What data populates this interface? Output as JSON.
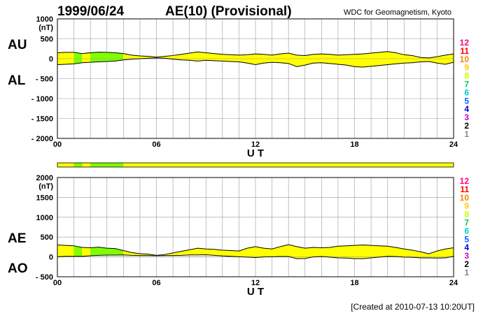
{
  "header": {
    "date": "1999/06/24",
    "title": "AE(10) (Provisional)",
    "source": "WDC for Geomagnetism, Kyoto"
  },
  "footer": {
    "created": "[Created at 2010-07-13 10:20UT]"
  },
  "colors": {
    "fill_default": "#ffff00",
    "fill_green": "#80ff00",
    "line": "#000000",
    "grid": "#999999"
  },
  "legend_levels": [
    {
      "label": "12",
      "color": "#ff0080"
    },
    {
      "label": "11",
      "color": "#ff0000"
    },
    {
      "label": "10",
      "color": "#ff8000"
    },
    {
      "label": "9",
      "color": "#ffcc00"
    },
    {
      "label": "8",
      "color": "#ccff00"
    },
    {
      "label": "7",
      "color": "#00cc66"
    },
    {
      "label": "6",
      "color": "#00cccc"
    },
    {
      "label": "5",
      "color": "#0066ff"
    },
    {
      "label": "4",
      "color": "#0000cc"
    },
    {
      "label": "3",
      "color": "#cc00cc"
    },
    {
      "label": "2",
      "color": "#000000"
    },
    {
      "label": "1",
      "color": "#888888"
    }
  ],
  "chart_data": [
    {
      "type": "area",
      "panel": "AU/AL",
      "upper_label": "AU",
      "lower_label": "AL",
      "unit": "(nT)",
      "xlabel": "U T",
      "xlim": [
        0,
        24
      ],
      "ylim": [
        -2000,
        1000
      ],
      "yticks": [
        {
          "v": 1000,
          "label": "1000"
        },
        {
          "v": 500,
          "label": "500"
        },
        {
          "v": 0,
          "label": "0"
        },
        {
          "v": -500,
          "label": "- 500"
        },
        {
          "v": -1000,
          "label": "- 1000"
        },
        {
          "v": -1500,
          "label": "- 1500"
        },
        {
          "v": -2000,
          "label": "- 2000"
        }
      ],
      "xticks": [
        {
          "v": 0,
          "label": "00"
        },
        {
          "v": 6,
          "label": "06"
        },
        {
          "v": 12,
          "label": "12"
        },
        {
          "v": 18,
          "label": "18"
        },
        {
          "v": 24,
          "label": "24"
        }
      ],
      "x": [
        0,
        0.5,
        1,
        1.5,
        2,
        2.5,
        3,
        3.5,
        4,
        4.5,
        5,
        5.5,
        6,
        6.5,
        7,
        7.5,
        8,
        8.5,
        9,
        9.5,
        10,
        10.5,
        11,
        11.5,
        12,
        12.5,
        13,
        13.5,
        14,
        14.5,
        15,
        15.5,
        16,
        16.5,
        17,
        17.5,
        18,
        18.5,
        19,
        19.5,
        20,
        20.5,
        21,
        21.5,
        22,
        22.5,
        23,
        23.5,
        24
      ],
      "series": [
        {
          "role": "upper",
          "values": [
            150,
            160,
            160,
            130,
            150,
            165,
            160,
            150,
            130,
            90,
            70,
            60,
            40,
            60,
            80,
            110,
            140,
            170,
            150,
            130,
            110,
            100,
            90,
            100,
            120,
            110,
            90,
            120,
            140,
            90,
            80,
            110,
            120,
            110,
            90,
            100,
            110,
            120,
            140,
            160,
            180,
            150,
            100,
            80,
            30,
            20,
            50,
            90,
            120
          ]
        },
        {
          "role": "lower",
          "values": [
            -150,
            -140,
            -130,
            -100,
            -90,
            -80,
            -70,
            -60,
            -30,
            -10,
            0,
            10,
            20,
            10,
            -10,
            -30,
            -40,
            -60,
            -40,
            -50,
            -60,
            -70,
            -80,
            -110,
            -150,
            -110,
            -90,
            -100,
            -120,
            -200,
            -160,
            -110,
            -100,
            -120,
            -140,
            -160,
            -200,
            -210,
            -190,
            -170,
            -150,
            -130,
            -110,
            -100,
            -80,
            -70,
            -110,
            -140,
            -90
          ]
        }
      ],
      "activity_level": [
        10,
        10,
        9,
        10,
        9,
        9,
        9,
        9,
        10,
        10,
        10,
        10,
        10,
        10,
        10,
        10,
        10,
        10,
        10,
        10,
        10,
        10,
        10,
        10,
        10,
        10,
        10,
        10,
        10,
        10,
        10,
        10,
        10,
        10,
        10,
        10,
        10,
        10,
        10,
        10,
        10,
        10,
        10,
        10,
        10,
        10,
        10,
        10
      ]
    },
    {
      "type": "area",
      "panel": "AE/AO",
      "upper_label": "AE",
      "lower_label": "AO",
      "unit": "(nT)",
      "xlabel": "U T",
      "xlim": [
        0,
        24
      ],
      "ylim": [
        -500,
        2000
      ],
      "yticks": [
        {
          "v": 2000,
          "label": "2000"
        },
        {
          "v": 1500,
          "label": "1500"
        },
        {
          "v": 1000,
          "label": "1000"
        },
        {
          "v": 500,
          "label": "500"
        },
        {
          "v": 0,
          "label": "0"
        },
        {
          "v": -500,
          "label": "- 500"
        }
      ],
      "xticks": [
        {
          "v": 0,
          "label": "00"
        },
        {
          "v": 6,
          "label": "06"
        },
        {
          "v": 12,
          "label": "12"
        },
        {
          "v": 18,
          "label": "18"
        },
        {
          "v": 24,
          "label": "24"
        }
      ],
      "x": [
        0,
        0.5,
        1,
        1.5,
        2,
        2.5,
        3,
        3.5,
        4,
        4.5,
        5,
        5.5,
        6,
        6.5,
        7,
        7.5,
        8,
        8.5,
        9,
        9.5,
        10,
        10.5,
        11,
        11.5,
        12,
        12.5,
        13,
        13.5,
        14,
        14.5,
        15,
        15.5,
        16,
        16.5,
        17,
        17.5,
        18,
        18.5,
        19,
        19.5,
        20,
        20.5,
        21,
        21.5,
        22,
        22.5,
        23,
        23.5,
        24
      ],
      "series": [
        {
          "role": "upper",
          "values": [
            300,
            290,
            280,
            240,
            230,
            245,
            220,
            210,
            160,
            110,
            80,
            70,
            40,
            60,
            100,
            140,
            180,
            220,
            200,
            190,
            170,
            160,
            150,
            220,
            260,
            220,
            200,
            260,
            310,
            260,
            220,
            240,
            230,
            240,
            270,
            280,
            290,
            300,
            290,
            280,
            270,
            240,
            200,
            170,
            130,
            80,
            150,
            200,
            230
          ]
        },
        {
          "role": "lower",
          "values": [
            5,
            15,
            15,
            15,
            30,
            40,
            45,
            45,
            50,
            40,
            35,
            35,
            30,
            35,
            35,
            40,
            50,
            50,
            55,
            40,
            25,
            15,
            5,
            -5,
            -15,
            0,
            5,
            10,
            10,
            -45,
            -40,
            0,
            10,
            -5,
            -25,
            -30,
            -45,
            -45,
            -25,
            -5,
            15,
            10,
            -5,
            -10,
            -25,
            -25,
            -30,
            -25,
            15
          ]
        }
      ],
      "activity_level": [
        10,
        10,
        9,
        10,
        9,
        9,
        9,
        9,
        10,
        10,
        10,
        10,
        10,
        10,
        10,
        10,
        10,
        10,
        10,
        10,
        10,
        10,
        10,
        10,
        10,
        10,
        10,
        10,
        10,
        10,
        10,
        10,
        10,
        10,
        10,
        10,
        10,
        10,
        10,
        10,
        10,
        10,
        10,
        10,
        10,
        10,
        10,
        10
      ]
    }
  ]
}
